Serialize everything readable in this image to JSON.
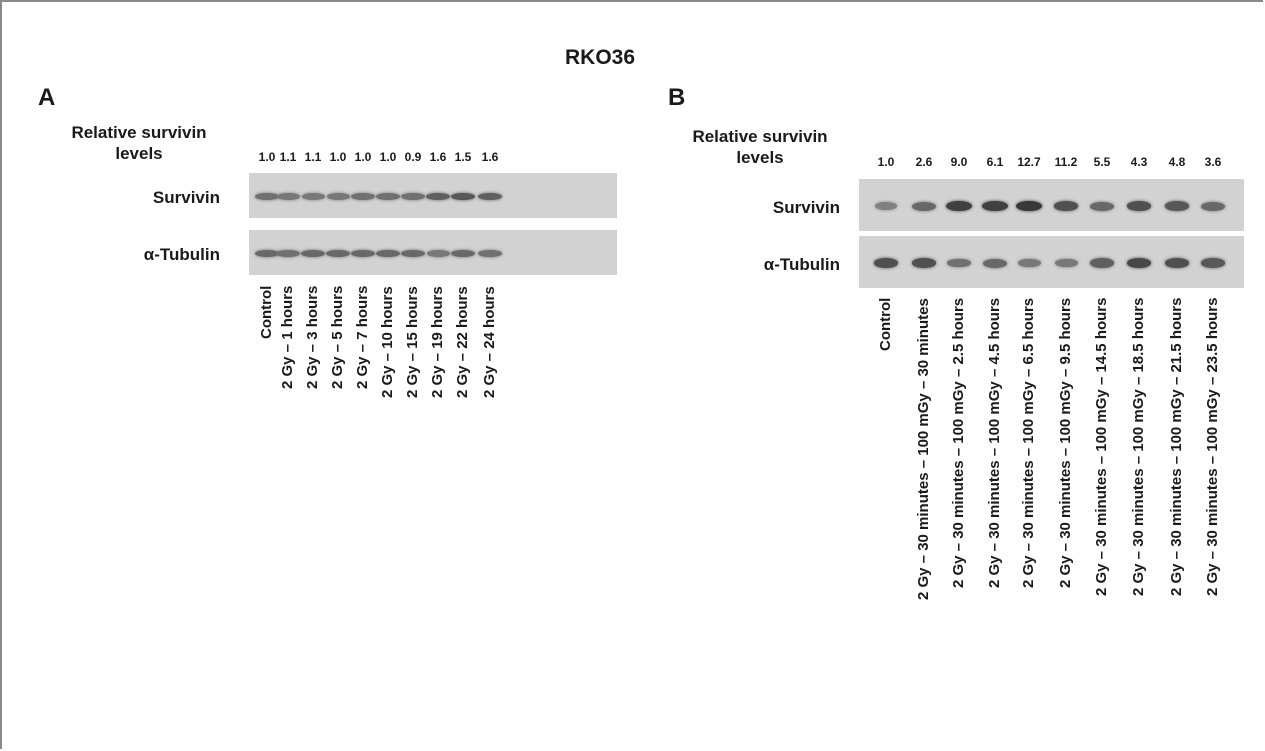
{
  "title": "RKO36",
  "panels": [
    {
      "letter": "A",
      "header_line1": "Relative survivin",
      "header_line2": "levels",
      "values": [
        "1.0",
        "1.1",
        "1.1",
        "1.0",
        "1.0",
        "1.0",
        "0.9",
        "1.6",
        "1.5",
        "1.6"
      ],
      "rows": [
        "Survivin",
        "α-Tubulin"
      ],
      "lanes": [
        "Control",
        "2 Gy – 1 hours",
        "2 Gy – 3 hours",
        "2 Gy – 5 hours",
        "2 Gy – 7 hours",
        "2 Gy – 10 hours",
        "2 Gy – 15 hours",
        "2 Gy – 19 hours",
        "2 Gy – 22 hours",
        "2 Gy – 24 hours"
      ],
      "survivin_intensity": [
        0.55,
        0.5,
        0.5,
        0.5,
        0.55,
        0.55,
        0.55,
        0.65,
        0.7,
        0.65
      ],
      "tubulin_intensity": [
        0.6,
        0.55,
        0.6,
        0.6,
        0.6,
        0.6,
        0.6,
        0.5,
        0.6,
        0.55
      ]
    },
    {
      "letter": "B",
      "header_line1": "Relative survivin",
      "header_line2": "levels",
      "values": [
        "1.0",
        "2.6",
        "9.0",
        "6.1",
        "12.7",
        "11.2",
        "5.5",
        "4.3",
        "4.8",
        "3.6"
      ],
      "rows": [
        "Survivin",
        "α-Tubulin"
      ],
      "lanes": [
        "Control",
        "2 Gy – 30 minutes – 100 mGy – 30 minutes",
        "2 Gy – 30 minutes – 100 mGy – 2.5 hours",
        "2 Gy – 30 minutes – 100 mGy – 4.5 hours",
        "2 Gy – 30 minutes – 100 mGy – 6.5 hours",
        "2 Gy – 30 minutes – 100 mGy – 9.5 hours",
        "2 Gy – 30 minutes – 100 mGy – 14.5 hours",
        "2 Gy – 30 minutes – 100 mGy – 18.5 hours",
        "2 Gy – 30 minutes – 100 mGy – 21.5 hours",
        "2 Gy – 30 minutes – 100 mGy – 23.5 hours"
      ],
      "survivin_intensity": [
        0.45,
        0.6,
        0.85,
        0.85,
        0.9,
        0.75,
        0.6,
        0.75,
        0.7,
        0.6
      ],
      "tubulin_intensity": [
        0.75,
        0.75,
        0.55,
        0.6,
        0.5,
        0.5,
        0.65,
        0.8,
        0.75,
        0.7
      ]
    }
  ]
}
